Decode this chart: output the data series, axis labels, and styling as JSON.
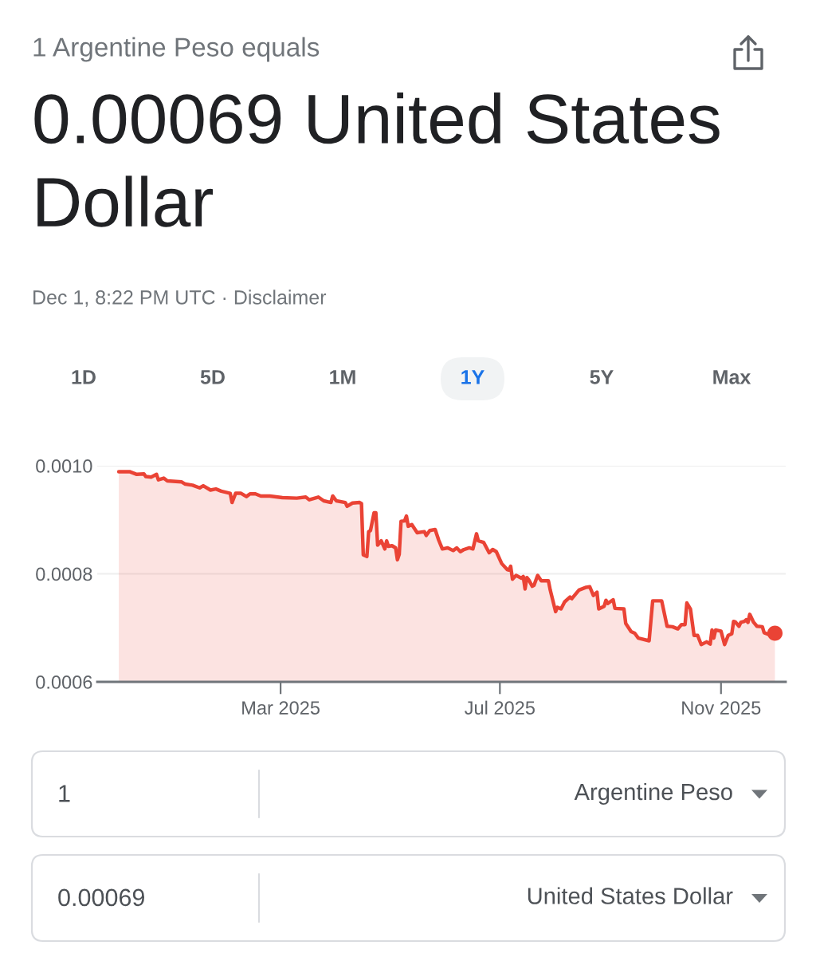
{
  "chart_data": {
    "type": "area",
    "title": "1 Argentine Peso equals",
    "subtitle": "0.00069 United States Dollar",
    "annotations": [
      "Dec 1, 8:22 PM UTC · Disclaimer",
      "1D",
      "5D",
      "1M",
      "1Y",
      "5Y",
      "Max",
      "1",
      "Argentine Peso",
      "0.00069",
      "United States Dollar"
    ],
    "xlim": [
      "2024-11-19",
      "2025-12-07"
    ],
    "ylim": [
      0.0006,
      0.001
    ],
    "xticks": [
      {
        "value": "2025-03-01",
        "label": "Mar 2025"
      },
      {
        "value": "2025-07-01",
        "label": "Jul 2025"
      },
      {
        "value": "2025-11-01",
        "label": "Nov 2025"
      }
    ],
    "yticks": [
      0.0006,
      0.0008,
      {
        "value": 0.001,
        "label": "0.0010"
      }
    ],
    "grid": "y",
    "series": [
      {
        "color": "#ea4335",
        "x": [
          "2024-12-01",
          "2024-12-07",
          "2024-12-11",
          "2024-12-15",
          "2024-12-16",
          "2024-12-19",
          "2024-12-22",
          "2024-12-23",
          "2024-12-26",
          "2024-12-28",
          "2025-01-05",
          "2025-01-07",
          "2025-01-11",
          "2025-01-15",
          "2025-01-17",
          "2025-01-21",
          "2025-01-24",
          "2025-01-27",
          "2025-02-01",
          "2025-02-02",
          "2025-02-04",
          "2025-02-07",
          "2025-02-10",
          "2025-02-12",
          "2025-02-15",
          "2025-02-18",
          "2025-02-23",
          "2025-03-02",
          "2025-03-10",
          "2025-03-15",
          "2025-03-17",
          "2025-03-22",
          "2025-03-25",
          "2025-03-29",
          "2025-03-30",
          "2025-04-01",
          "2025-04-06",
          "2025-04-07",
          "2025-04-10",
          "2025-04-14",
          "2025-04-15",
          "2025-04-16",
          "2025-04-18",
          "2025-04-19",
          "2025-04-20",
          "2025-04-22",
          "2025-04-23",
          "2025-04-24",
          "2025-04-26",
          "2025-04-28",
          "2025-04-29",
          "2025-04-30",
          "2025-05-02",
          "2025-05-04",
          "2025-05-05",
          "2025-05-06",
          "2025-05-07",
          "2025-05-09",
          "2025-05-10",
          "2025-05-11",
          "2025-05-13",
          "2025-05-16",
          "2025-05-20",
          "2025-05-21",
          "2025-05-23",
          "2025-05-26",
          "2025-05-28",
          "2025-05-30",
          "2025-06-02",
          "2025-06-05",
          "2025-06-07",
          "2025-06-09",
          "2025-06-11",
          "2025-06-14",
          "2025-06-16",
          "2025-06-18",
          "2025-06-19",
          "2025-06-22",
          "2025-06-25",
          "2025-06-27",
          "2025-06-29",
          "2025-07-02",
          "2025-07-05",
          "2025-07-06",
          "2025-07-07",
          "2025-07-08",
          "2025-07-10",
          "2025-07-13",
          "2025-07-14",
          "2025-07-15",
          "2025-07-16",
          "2025-07-17",
          "2025-07-19",
          "2025-07-20",
          "2025-07-22",
          "2025-07-24",
          "2025-07-28",
          "2025-07-29",
          "2025-08-01",
          "2025-08-02",
          "2025-08-04",
          "2025-08-06",
          "2025-08-09",
          "2025-08-10",
          "2025-08-14",
          "2025-08-18",
          "2025-08-20",
          "2025-08-22",
          "2025-08-24",
          "2025-08-25",
          "2025-08-28",
          "2025-08-29",
          "2025-08-30",
          "2025-09-02",
          "2025-09-03",
          "2025-09-08",
          "2025-09-09",
          "2025-09-12",
          "2025-09-14",
          "2025-09-16",
          "2025-09-22",
          "2025-09-24",
          "2025-09-29",
          "2025-10-02",
          "2025-10-05",
          "2025-10-08",
          "2025-10-10",
          "2025-10-12",
          "2025-10-13",
          "2025-10-15",
          "2025-10-17",
          "2025-10-19",
          "2025-10-21",
          "2025-10-24",
          "2025-10-26",
          "2025-10-27",
          "2025-10-28",
          "2025-10-29",
          "2025-11-01",
          "2025-11-03",
          "2025-11-05",
          "2025-11-07",
          "2025-11-08",
          "2025-11-09",
          "2025-11-11",
          "2025-11-12",
          "2025-11-14",
          "2025-11-15",
          "2025-11-16",
          "2025-11-17",
          "2025-11-19",
          "2025-11-21",
          "2025-11-24",
          "2025-11-25",
          "2025-11-28",
          "2025-12-01"
        ],
        "values": [
          0.000989,
          0.000989,
          0.000984,
          0.000985,
          0.00098,
          0.000979,
          0.000984,
          0.000974,
          0.000977,
          0.000972,
          0.00097,
          0.000966,
          0.000964,
          0.000959,
          0.000963,
          0.000955,
          0.000957,
          0.000953,
          0.000949,
          0.000932,
          0.000949,
          0.000949,
          0.000943,
          0.000948,
          0.000948,
          0.000944,
          0.000944,
          0.000941,
          0.00094,
          0.000942,
          0.000937,
          0.000942,
          0.000935,
          0.000932,
          0.000944,
          0.000935,
          0.000932,
          0.000925,
          0.000931,
          0.000932,
          0.00093,
          0.000835,
          0.000832,
          0.000878,
          0.00088,
          0.000913,
          0.000913,
          0.000853,
          0.000861,
          0.000846,
          0.000861,
          0.000851,
          0.000852,
          0.000848,
          0.000826,
          0.000836,
          0.000897,
          0.000898,
          0.000907,
          0.000888,
          0.000891,
          0.000876,
          0.000878,
          0.000871,
          0.00088,
          0.000882,
          0.000862,
          0.000846,
          0.000848,
          0.000843,
          0.000848,
          0.000841,
          0.000845,
          0.000848,
          0.000846,
          0.000874,
          0.000861,
          0.000858,
          0.000839,
          0.000845,
          0.000841,
          0.000819,
          0.000808,
          0.000807,
          0.000814,
          0.00079,
          0.000797,
          0.000792,
          0.000795,
          0.000772,
          0.000793,
          0.000789,
          0.000777,
          0.000779,
          0.000797,
          0.000787,
          0.000787,
          0.00077,
          0.00073,
          0.000738,
          0.000735,
          0.000748,
          0.000757,
          0.000754,
          0.00077,
          0.000775,
          0.000776,
          0.00076,
          0.000766,
          0.000735,
          0.00074,
          0.000751,
          0.000745,
          0.000752,
          0.000736,
          0.000735,
          0.000708,
          0.000693,
          0.00069,
          0.000681,
          0.000676,
          0.00075,
          0.00075,
          0.000703,
          0.000702,
          0.000698,
          0.000706,
          0.000706,
          0.000746,
          0.000735,
          0.000686,
          0.000686,
          0.000669,
          0.000674,
          0.00067,
          0.000696,
          0.000681,
          0.000696,
          0.000694,
          0.000669,
          0.000686,
          0.000689,
          0.000712,
          0.000711,
          0.000703,
          0.00071,
          0.000712,
          0.000715,
          0.00071,
          0.000725,
          0.000711,
          0.000703,
          0.000702,
          0.000691,
          0.000687,
          0.00069
        ]
      },
      {
        "type": "scatter",
        "color": "#ea4335",
        "x": [
          "2025-12-01"
        ],
        "values": [
          0.00069
        ]
      }
    ]
  }
}
